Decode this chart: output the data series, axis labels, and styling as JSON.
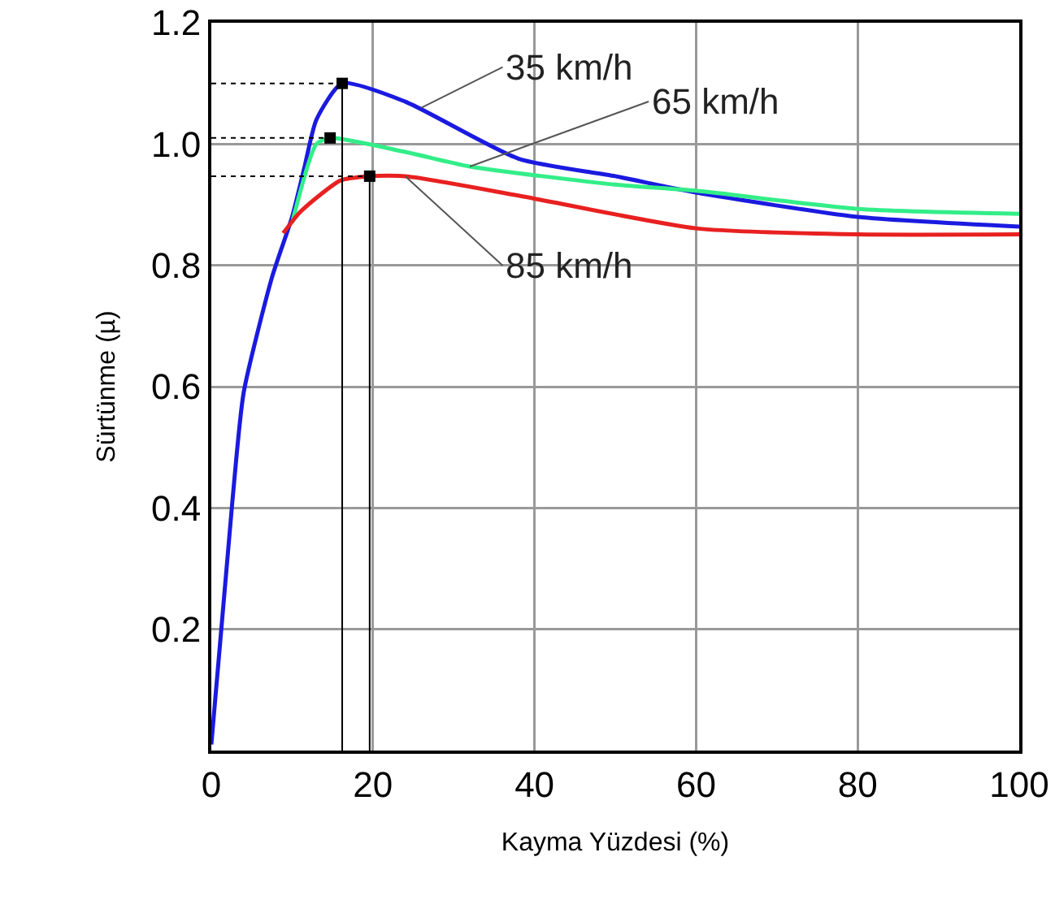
{
  "chart_data": {
    "type": "line",
    "xlabel": "Kayma Yüzdesi (%)",
    "ylabel": "Sürtünme (µ)",
    "xlim": [
      0,
      100
    ],
    "xticks": [
      0,
      20,
      40,
      60,
      80,
      100
    ],
    "ylim": [
      0,
      1.2
    ],
    "yticks": [
      0.2,
      0.4,
      0.6,
      {
        "value": 0.8,
        "label": "0.8"
      },
      {
        "value": 1,
        "label": "1.0"
      },
      1.2
    ],
    "grid": true,
    "marker": "none",
    "line_style": "solid",
    "series": [
      {
        "color": "#1a1ae0",
        "x": [
          0,
          2.6,
          4,
          7.5,
          10,
          11.5,
          13,
          16.2,
          24,
          38,
          50,
          60,
          80,
          100
        ],
        "values": [
          0.01,
          0.41,
          0.59,
          0.78,
          0.88,
          0.96,
          1.04,
          1.1,
          1.07,
          0.976,
          0.947,
          0.92,
          0.88,
          0.864
        ]
      },
      {
        "color": "#33ee88",
        "x": [
          10,
          13,
          14.7,
          24,
          32,
          50,
          60,
          80,
          100
        ],
        "values": [
          0.87,
          1.0,
          1.01,
          0.987,
          0.963,
          0.933,
          0.923,
          0.893,
          0.885
        ]
      },
      {
        "color": "#e82020",
        "x": [
          8.9,
          11,
          16,
          19.6,
          24,
          38,
          60,
          80,
          100
        ],
        "values": [
          0.853,
          0.888,
          0.94,
          0.947,
          0.947,
          0.915,
          0.861,
          0.851,
          0.851
        ]
      },
      {
        "color": "#000000",
        "line_style": "dotted",
        "x": [
          0,
          16.2
        ],
        "values": [
          1.1,
          1.1
        ]
      },
      {
        "color": "#000000",
        "line_style": "dotted",
        "x": [
          0,
          14.7
        ],
        "values": [
          1.01,
          1.01
        ]
      },
      {
        "color": "#000000",
        "line_style": "dotted",
        "x": [
          0,
          19.6
        ],
        "values": [
          0.947,
          0.947
        ]
      },
      {
        "type": "scatter",
        "marker": "square",
        "color": "#000000",
        "x": [
          16.2,
          14.7,
          19.6
        ],
        "values": [
          1.1,
          1.01,
          0.947
        ],
        "errors": [
          [
            0,
            1.1
          ],
          null,
          [
            0,
            0.947
          ]
        ]
      }
    ],
    "annotations": [
      {
        "text": "35 km/h",
        "x": 26,
        "y": 1.06
      },
      {
        "text": "65 km/h",
        "x": 32,
        "y": 0.963
      },
      {
        "text": "85 km/h",
        "x": 24,
        "y": 0.947
      }
    ]
  }
}
